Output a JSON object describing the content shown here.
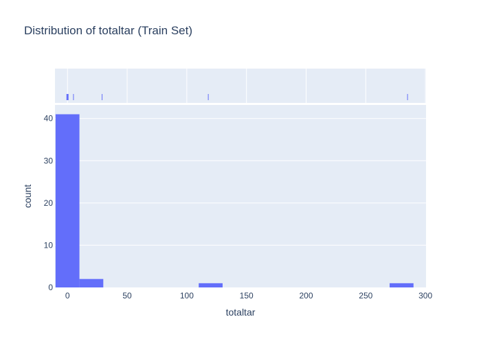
{
  "chart_data": {
    "type": "bar",
    "title": "Distribution of totaltar (Train Set)",
    "xlabel": "totaltar",
    "ylabel": "count",
    "bin_width": 20,
    "bins": [
      {
        "x0": -10,
        "x1": 10,
        "count": 41
      },
      {
        "x0": 10,
        "x1": 30,
        "count": 2
      },
      {
        "x0": 110,
        "x1": 130,
        "count": 1
      },
      {
        "x0": 270,
        "x1": 290,
        "count": 1
      }
    ],
    "rug_values": [
      0,
      5,
      29,
      118,
      285
    ],
    "x_ticks": [
      0,
      50,
      100,
      150,
      200,
      250,
      300
    ],
    "y_ticks": [
      0,
      10,
      20,
      30,
      40
    ],
    "xlim": [
      -10.5,
      300.5
    ],
    "ylim": [
      0,
      43.2
    ],
    "grid": true,
    "colors": {
      "bar": "#636efa",
      "plot_bg": "#e5ecf6",
      "grid": "#ffffff",
      "text": "#2a3f5f"
    }
  }
}
